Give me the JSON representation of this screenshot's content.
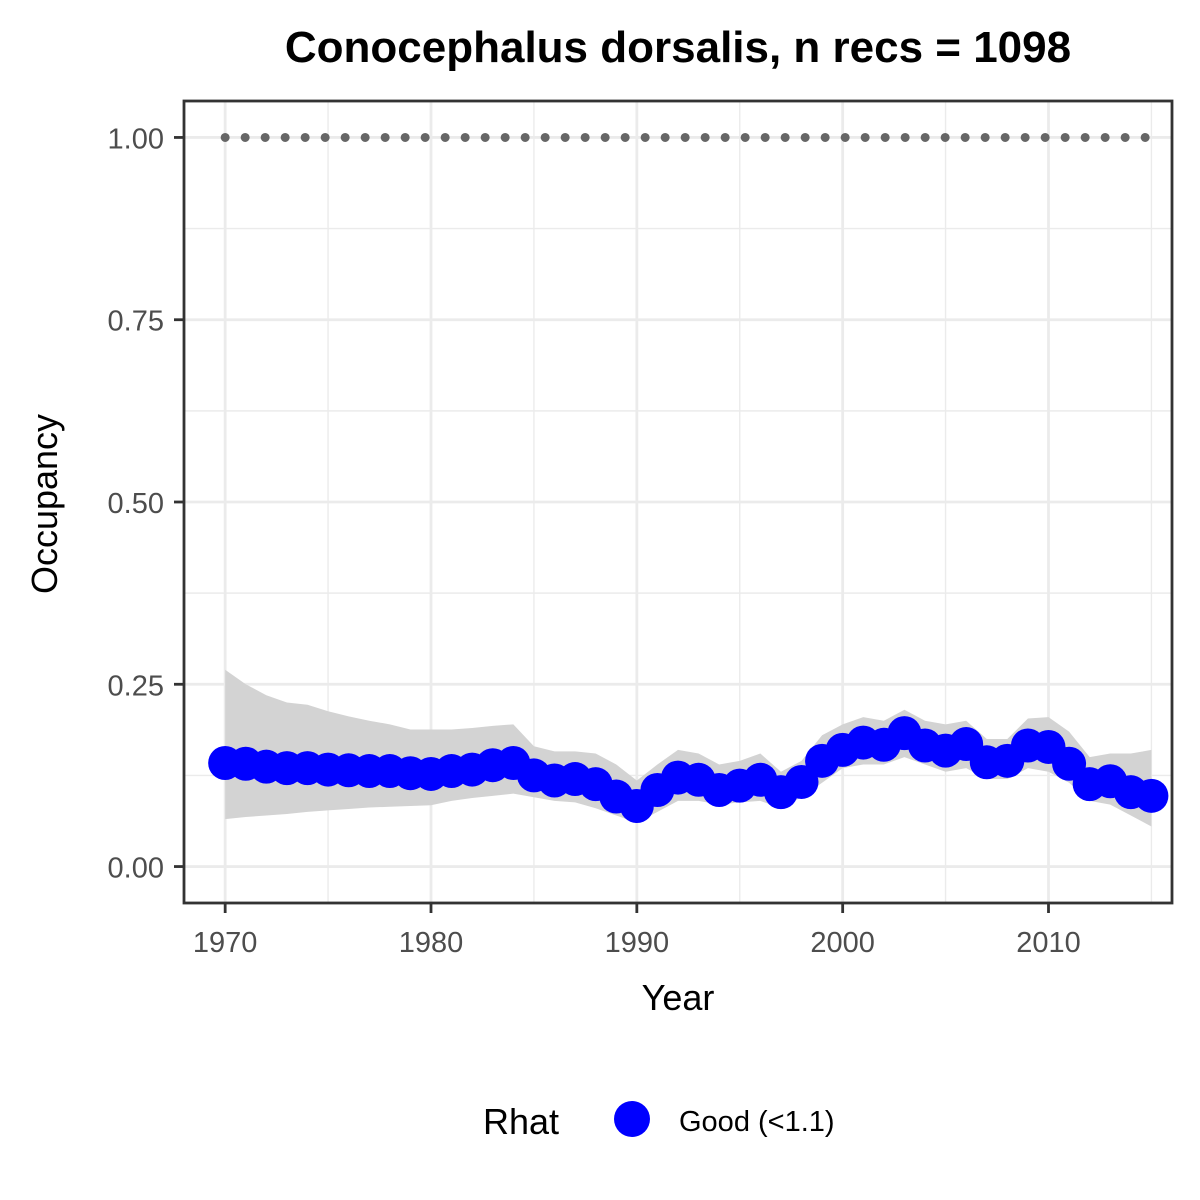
{
  "chart_data": {
    "type": "line",
    "title": "Conocephalus dorsalis, n recs = 1098",
    "xlabel": "Year",
    "ylabel": "Occupancy",
    "xlim": [
      1968,
      2016
    ],
    "ylim": [
      -0.05,
      1.05
    ],
    "x_ticks": [
      1970,
      1980,
      1990,
      2000,
      2010
    ],
    "x_tick_labels": [
      "1970",
      "1980",
      "1990",
      "2000",
      "2010"
    ],
    "y_ticks": [
      0,
      0.25,
      0.5,
      0.75,
      1.0
    ],
    "y_tick_labels": [
      "0.00",
      "0.25",
      "0.50",
      "0.75",
      "1.00"
    ],
    "grid": true,
    "legend": {
      "position": "bottom",
      "title": "Rhat",
      "entries": [
        {
          "label": "Good (<1.1)",
          "color": "#0000ff"
        }
      ]
    },
    "colors": {
      "points": "#0000ff",
      "ribbon": "#d3d3d3",
      "reference": "#666666"
    },
    "series": [
      {
        "name": "Occupancy",
        "x": [
          1970,
          1971,
          1972,
          1973,
          1974,
          1975,
          1976,
          1977,
          1978,
          1979,
          1980,
          1981,
          1982,
          1983,
          1984,
          1985,
          1986,
          1987,
          1988,
          1989,
          1990,
          1991,
          1992,
          1993,
          1994,
          1995,
          1996,
          1997,
          1998,
          1999,
          2000,
          2001,
          2002,
          2003,
          2004,
          2005,
          2006,
          2007,
          2008,
          2009,
          2010,
          2011,
          2012,
          2013,
          2014,
          2015
        ],
        "y": [
          0.142,
          0.141,
          0.137,
          0.135,
          0.135,
          0.133,
          0.132,
          0.131,
          0.131,
          0.128,
          0.127,
          0.131,
          0.133,
          0.139,
          0.142,
          0.125,
          0.118,
          0.12,
          0.113,
          0.096,
          0.083,
          0.105,
          0.122,
          0.119,
          0.105,
          0.111,
          0.119,
          0.102,
          0.116,
          0.145,
          0.16,
          0.17,
          0.167,
          0.183,
          0.166,
          0.159,
          0.168,
          0.143,
          0.145,
          0.166,
          0.164,
          0.141,
          0.113,
          0.117,
          0.102,
          0.097
        ],
        "lower": [
          0.065,
          0.068,
          0.07,
          0.072,
          0.075,
          0.077,
          0.079,
          0.081,
          0.082,
          0.083,
          0.084,
          0.09,
          0.094,
          0.097,
          0.1,
          0.095,
          0.09,
          0.088,
          0.08,
          0.07,
          0.06,
          0.075,
          0.09,
          0.09,
          0.085,
          0.088,
          0.09,
          0.08,
          0.095,
          0.115,
          0.135,
          0.14,
          0.14,
          0.15,
          0.14,
          0.13,
          0.135,
          0.12,
          0.12,
          0.135,
          0.13,
          0.115,
          0.09,
          0.085,
          0.07,
          0.055
        ],
        "upper": [
          0.27,
          0.25,
          0.235,
          0.225,
          0.222,
          0.213,
          0.206,
          0.2,
          0.195,
          0.188,
          0.188,
          0.188,
          0.19,
          0.193,
          0.195,
          0.165,
          0.158,
          0.158,
          0.155,
          0.14,
          0.118,
          0.14,
          0.16,
          0.155,
          0.14,
          0.145,
          0.155,
          0.13,
          0.145,
          0.18,
          0.195,
          0.205,
          0.2,
          0.215,
          0.2,
          0.195,
          0.2,
          0.175,
          0.175,
          0.203,
          0.205,
          0.185,
          0.15,
          0.155,
          0.155,
          0.16
        ]
      }
    ],
    "reference": {
      "y": 1.0
    }
  }
}
